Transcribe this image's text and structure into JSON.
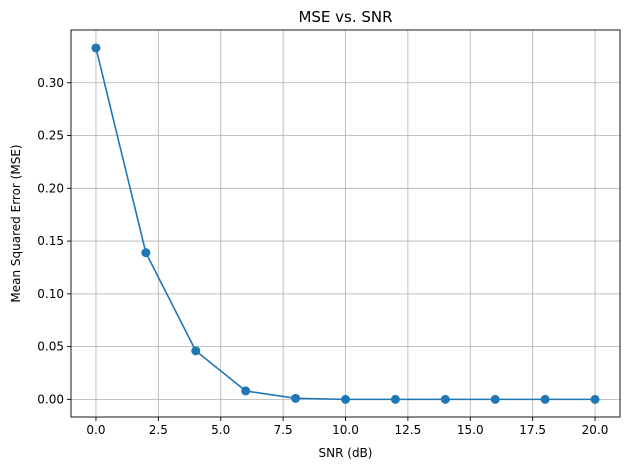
{
  "chart_data": {
    "type": "line",
    "title": "MSE vs. SNR",
    "xlabel": "SNR (dB)",
    "ylabel": "Mean Squared Error (MSE)",
    "xlim": [
      -1.0,
      21.0
    ],
    "ylim": [
      -0.0167,
      0.35
    ],
    "xticks": [
      0.0,
      2.5,
      5.0,
      7.5,
      10.0,
      12.5,
      15.0,
      17.5,
      20.0
    ],
    "xtick_labels": [
      "0.0",
      "2.5",
      "5.0",
      "7.5",
      "10.0",
      "12.5",
      "15.0",
      "17.5",
      "20.0"
    ],
    "yticks": [
      0.0,
      0.05,
      0.1,
      0.15,
      0.2,
      0.25,
      0.3
    ],
    "ytick_labels": [
      "0.00",
      "0.05",
      "0.10",
      "0.15",
      "0.20",
      "0.25",
      "0.30"
    ],
    "grid": true,
    "marker": "circle",
    "color": "#1f77b4",
    "series": [
      {
        "x": [
          0,
          2,
          4,
          6,
          8,
          10,
          12,
          14,
          16,
          18,
          20
        ],
        "values": [
          0.333,
          0.139,
          0.046,
          0.008,
          0.001,
          0.0,
          0.0,
          0.0,
          0.0,
          0.0,
          0.0
        ]
      }
    ]
  }
}
